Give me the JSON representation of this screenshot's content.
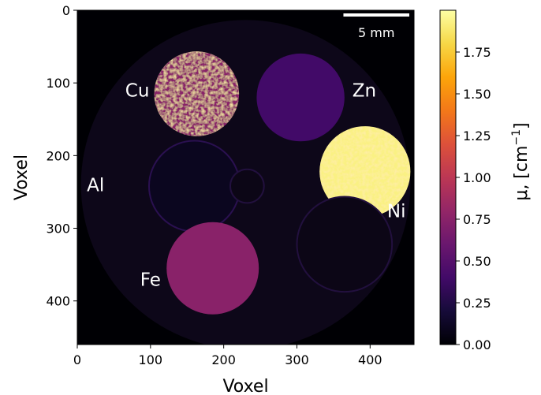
{
  "chart_data": {
    "type": "heatmap",
    "xlabel": "Voxel",
    "ylabel": "Voxel",
    "xlim": [
      0,
      460
    ],
    "ylim": [
      460,
      0
    ],
    "x_ticks": [
      0,
      100,
      200,
      300,
      400
    ],
    "y_ticks": [
      0,
      100,
      200,
      300,
      400
    ],
    "colormap": "inferno",
    "colorbar": {
      "label_main": "μ, [cm",
      "label_sup": "−1",
      "label_end": "]",
      "range": [
        0,
        2.0
      ],
      "ticks": [
        "0.00",
        "0.25",
        "0.50",
        "0.75",
        "1.00",
        "1.25",
        "1.50",
        "1.75"
      ]
    },
    "scale_bar": {
      "label": "5 mm",
      "length_voxels": 90
    },
    "samples": [
      {
        "name": "Cu",
        "cx": 163,
        "cy": 115,
        "r": 58,
        "mu": 0.75,
        "label_x": 82,
        "label_y": 112
      },
      {
        "name": "Zn",
        "cx": 305,
        "cy": 120,
        "r": 60,
        "mu": 0.4,
        "label_x": 392,
        "label_y": 112
      },
      {
        "name": "Ni",
        "cx": 393,
        "cy": 222,
        "r": 62,
        "mu": 1.93,
        "label_x": 436,
        "label_y": 278
      },
      {
        "name": "Al",
        "cx": 160,
        "cy": 242,
        "r": 62,
        "mu": 0.1,
        "label_x": 25,
        "label_y": 242
      },
      {
        "name": "Fe",
        "cx": 185,
        "cy": 355,
        "r": 63,
        "mu": 0.75,
        "label_x": 100,
        "label_y": 372
      },
      {
        "name": "",
        "cx": 365,
        "cy": 322,
        "r": 65,
        "mu": 0.04,
        "label_x": 0,
        "label_y": 0
      },
      {
        "name": "",
        "cx": 232,
        "cy": 242,
        "r": 23,
        "mu": 0.04,
        "label_x": 0,
        "label_y": 0
      }
    ],
    "container": {
      "cx": 230,
      "cy": 240,
      "r": 225,
      "mu": 0.03
    }
  }
}
